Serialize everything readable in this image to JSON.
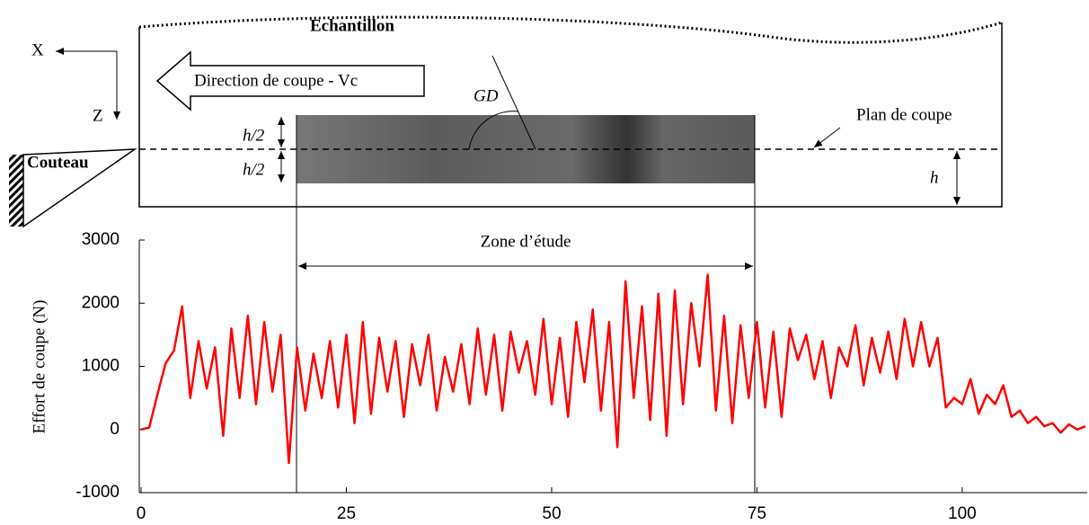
{
  "diagram": {
    "x_axis": "X",
    "z_axis": "Z",
    "sample": "Echantillon",
    "direction": "Direction de coupe - Vc",
    "angle": "GD",
    "half_top": "h/2",
    "half_bottom": "h/2",
    "knife": "Couteau",
    "plane": "Plan de coupe",
    "depth": "h",
    "zone": "Zone d’étude"
  },
  "chart_data": {
    "type": "line",
    "ylabel": "Effort de coupe (N)",
    "x": [
      0,
      1,
      2,
      3,
      4,
      5,
      6,
      7,
      8,
      9,
      10,
      11,
      12,
      13,
      14,
      15,
      16,
      17,
      18,
      19,
      20,
      21,
      22,
      23,
      24,
      25,
      26,
      27,
      28,
      29,
      30,
      31,
      32,
      33,
      34,
      35,
      36,
      37,
      38,
      39,
      40,
      41,
      42,
      43,
      44,
      45,
      46,
      47,
      48,
      49,
      50,
      51,
      52,
      53,
      54,
      55,
      56,
      57,
      58,
      59,
      60,
      61,
      62,
      63,
      64,
      65,
      66,
      67,
      68,
      69,
      70,
      71,
      72,
      73,
      74,
      75,
      76,
      77,
      78,
      79,
      80,
      81,
      82,
      83,
      84,
      85,
      86,
      87,
      88,
      89,
      90,
      91,
      92,
      93,
      94,
      95,
      96,
      97,
      98,
      99,
      100,
      101,
      102,
      103,
      104,
      105,
      106,
      107,
      108,
      109,
      110,
      111,
      112,
      113,
      114,
      115
    ],
    "series": [
      {
        "name": "Effort",
        "color": "#ff0000",
        "values": [
          0,
          30,
          560,
          1050,
          1250,
          1950,
          500,
          1400,
          650,
          1300,
          -100,
          1600,
          500,
          1800,
          400,
          1700,
          600,
          1500,
          -530,
          1300,
          300,
          1200,
          500,
          1400,
          350,
          1500,
          100,
          1700,
          250,
          1450,
          600,
          1400,
          200,
          1350,
          700,
          1500,
          300,
          1150,
          600,
          1350,
          400,
          1600,
          550,
          1500,
          300,
          1550,
          900,
          1400,
          550,
          1750,
          400,
          1450,
          200,
          1700,
          750,
          1900,
          300,
          1700,
          -280,
          2350,
          500,
          1950,
          150,
          2150,
          -100,
          2200,
          400,
          2000,
          1000,
          2450,
          300,
          1800,
          100,
          1650,
          500,
          1700,
          350,
          1550,
          200,
          1600,
          1100,
          1500,
          800,
          1400,
          500,
          1300,
          1000,
          1650,
          700,
          1450,
          900,
          1550,
          800,
          1750,
          1000,
          1700,
          1000,
          1450,
          350,
          500,
          400,
          800,
          250,
          550,
          400,
          700,
          200,
          300,
          100,
          200,
          50,
          100,
          -50,
          80,
          0,
          50
        ]
      }
    ],
    "xlim": [
      0,
      115
    ],
    "ylim": [
      -1000,
      3000
    ],
    "xticks": [
      0,
      25,
      50,
      75,
      100
    ],
    "yticks": [
      -1000,
      0,
      1000,
      2000,
      3000
    ]
  }
}
